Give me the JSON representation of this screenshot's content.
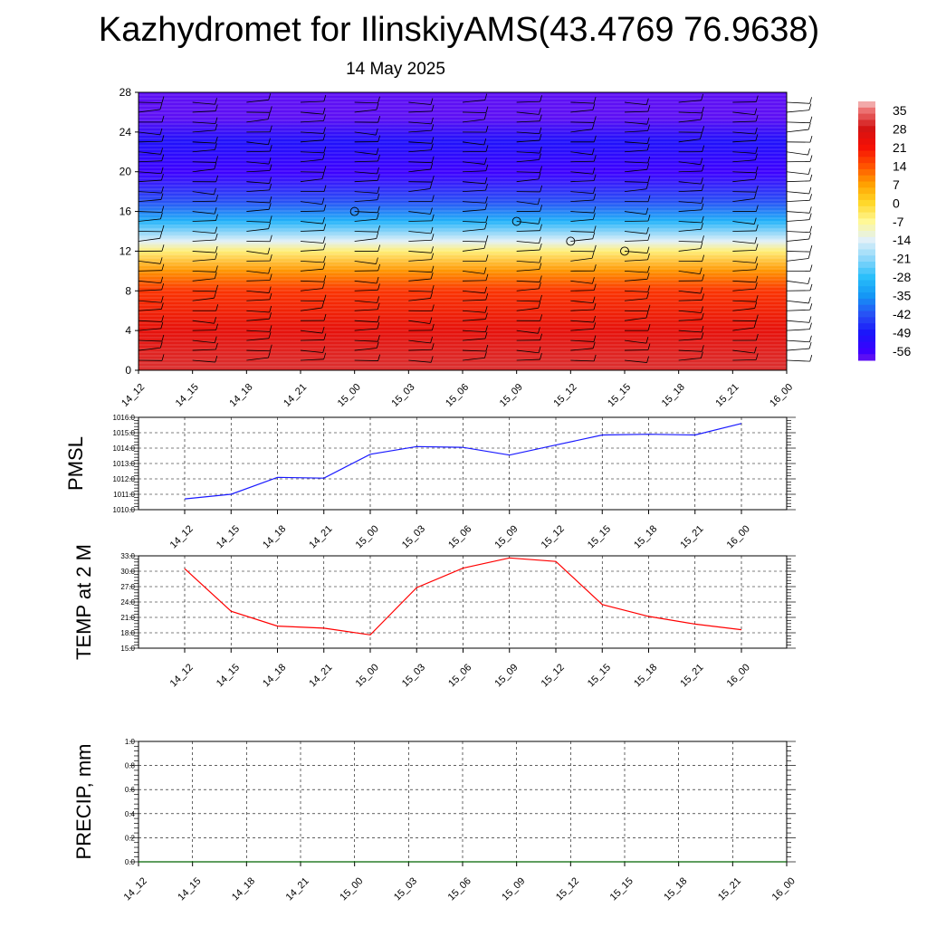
{
  "title": "Kazhydromet for IlinskiyAMS(43.4769 76.9638)",
  "subtitle": "14 May 2025",
  "colors": {
    "pmsl_line": "#1a1aff",
    "temp_line": "#ff0000",
    "precip_line": "#006400",
    "grid": "#000000"
  },
  "chart_data": [
    {
      "type": "heatmap",
      "title": "",
      "x_ticks": [
        "14_12",
        "14_15",
        "14_18",
        "14_21",
        "15_00",
        "15_03",
        "15_06",
        "15_09",
        "15_12",
        "15_15",
        "15_18",
        "15_21",
        "16_00"
      ],
      "y_ticks": [
        0,
        4,
        8,
        12,
        16,
        20,
        24,
        28
      ],
      "ylim": [
        0,
        28
      ],
      "note_levels": "temperature bands vs altitude with wind barbs",
      "band_profile": [
        {
          "y": 0,
          "value": 30
        },
        {
          "y": 4,
          "value": 24
        },
        {
          "y": 8,
          "value": 17
        },
        {
          "y": 10,
          "value": 8
        },
        {
          "y": 12,
          "value": -5
        },
        {
          "y": 13,
          "value": -14
        },
        {
          "y": 15,
          "value": -30
        },
        {
          "y": 17,
          "value": -42
        },
        {
          "y": 20,
          "value": -56
        },
        {
          "y": 23,
          "value": -50
        },
        {
          "y": 25.5,
          "value": -58
        },
        {
          "y": 28,
          "value": -58
        }
      ],
      "calm_markers": [
        {
          "x": "15_00",
          "y": 16
        },
        {
          "x": "15_09",
          "y": 15
        },
        {
          "x": "15_12",
          "y": 13
        },
        {
          "x": "15_15",
          "y": 12
        }
      ],
      "colorbar": {
        "labels": [
          "35",
          "28",
          "21",
          "14",
          "7",
          "0",
          "-7",
          "-14",
          "-21",
          "-28",
          "-35",
          "-42",
          "-49",
          "-56"
        ]
      }
    },
    {
      "type": "line",
      "ylabel": "PMSL",
      "categories": [
        "14_12",
        "14_15",
        "14_18",
        "14_21",
        "15_00",
        "15_03",
        "15_06",
        "15_09",
        "15_12",
        "15_15",
        "15_18",
        "15_21",
        "16_00"
      ],
      "values": [
        1010.7,
        1011.0,
        1012.1,
        1012.05,
        1013.6,
        1014.1,
        1014.05,
        1013.55,
        1014.2,
        1014.85,
        1014.9,
        1014.85,
        1015.6
      ],
      "ylim": [
        1010.0,
        1016.0
      ],
      "y_ticks": [
        "1010.0",
        "1011.0",
        "1012.0",
        "1013.0",
        "1014.0",
        "1015.0",
        "1016.0"
      ],
      "grid": true
    },
    {
      "type": "line",
      "ylabel": "TEMP at 2 M",
      "categories": [
        "14_12",
        "14_15",
        "14_18",
        "14_21",
        "15_00",
        "15_03",
        "15_06",
        "15_09",
        "15_12",
        "15_15",
        "15_18",
        "15_21",
        "16_00"
      ],
      "values": [
        30.5,
        22.2,
        19.3,
        18.9,
        17.6,
        26.8,
        30.6,
        32.6,
        31.9,
        23.5,
        21.2,
        19.7,
        18.6
      ],
      "ylim": [
        15.0,
        33.0
      ],
      "y_ticks": [
        "15.0",
        "18.0",
        "21.0",
        "24.0",
        "27.0",
        "30.0",
        "33.0"
      ],
      "grid": true
    },
    {
      "type": "line",
      "ylabel": "PRECIP, mm",
      "categories": [
        "14_12",
        "14_15",
        "14_18",
        "14_21",
        "15_00",
        "15_03",
        "15_06",
        "15_09",
        "15_12",
        "15_15",
        "15_18",
        "15_21",
        "16_00"
      ],
      "values": [
        0,
        0,
        0,
        0,
        0,
        0,
        0,
        0,
        0,
        0,
        0,
        0,
        0
      ],
      "ylim": [
        0.0,
        1.0
      ],
      "y_ticks": [
        "0.0",
        "0.2",
        "0.4",
        "0.6",
        "0.8",
        "1.0"
      ],
      "grid": true
    }
  ]
}
